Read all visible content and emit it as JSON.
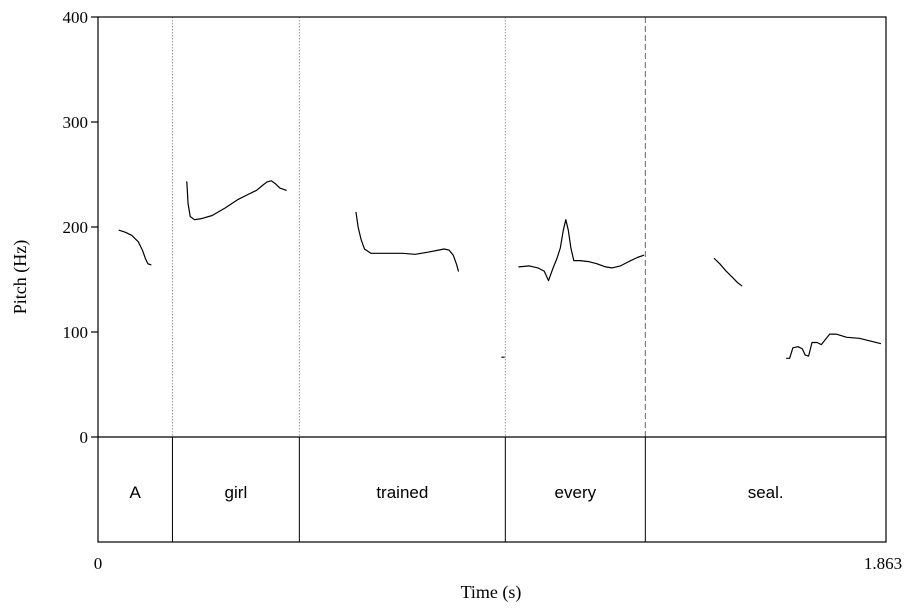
{
  "chart_data": {
    "type": "line",
    "xlabel": "Time (s)",
    "ylabel": "Pitch (Hz)",
    "xlim": [
      0,
      1.863
    ],
    "ylim": [
      0,
      400
    ],
    "x_tick_labels": [
      "0",
      "1.863"
    ],
    "y_ticks": [
      0,
      100,
      200,
      300,
      400
    ],
    "y_tick_labels": [
      "0",
      "100",
      "200",
      "300",
      "400"
    ],
    "grid": false,
    "boundaries": [
      {
        "time": 0.176,
        "style": "dotted"
      },
      {
        "time": 0.476,
        "style": "dotted"
      },
      {
        "time": 0.963,
        "style": "dotted"
      },
      {
        "time": 1.294,
        "style": "dashed"
      }
    ],
    "tier_boundaries": [
      0.176,
      0.476,
      0.963,
      1.294
    ],
    "words": [
      {
        "label": "A",
        "start": 0.0,
        "end": 0.176
      },
      {
        "label": "girl",
        "start": 0.176,
        "end": 0.476
      },
      {
        "label": "trained",
        "start": 0.476,
        "end": 0.963
      },
      {
        "label": "every",
        "start": 0.963,
        "end": 1.294
      },
      {
        "label": "seal.",
        "start": 1.294,
        "end": 1.863
      }
    ],
    "series": [
      {
        "segments": [
          [
            [
              0.05,
              197
            ],
            [
              0.065,
              195
            ],
            [
              0.08,
              192
            ],
            [
              0.095,
              186
            ],
            [
              0.105,
              178
            ],
            [
              0.112,
              170
            ],
            [
              0.118,
              165
            ],
            [
              0.125,
              164
            ]
          ],
          [
            [
              0.21,
              243
            ],
            [
              0.213,
              222
            ],
            [
              0.218,
              210
            ],
            [
              0.228,
              207
            ],
            [
              0.245,
              208
            ],
            [
              0.27,
              211
            ],
            [
              0.3,
              218
            ],
            [
              0.33,
              226
            ],
            [
              0.355,
              231
            ],
            [
              0.375,
              235
            ],
            [
              0.39,
              240
            ],
            [
              0.4,
              243
            ],
            [
              0.41,
              244
            ],
            [
              0.42,
              241
            ],
            [
              0.43,
              237
            ],
            [
              0.445,
              235
            ]
          ],
          [
            [
              0.61,
              214
            ],
            [
              0.615,
              200
            ],
            [
              0.622,
              188
            ],
            [
              0.63,
              179
            ],
            [
              0.645,
              175
            ],
            [
              0.68,
              175
            ],
            [
              0.72,
              175
            ],
            [
              0.75,
              174
            ],
            [
              0.78,
              176
            ],
            [
              0.805,
              178
            ],
            [
              0.818,
              179
            ],
            [
              0.83,
              178
            ],
            [
              0.84,
              173
            ],
            [
              0.848,
              164
            ],
            [
              0.852,
              158
            ]
          ],
          [
            [
              0.955,
              76
            ],
            [
              0.96,
              76
            ]
          ],
          [
            [
              0.995,
              162
            ],
            [
              1.02,
              163
            ],
            [
              1.04,
              161
            ],
            [
              1.055,
              158
            ],
            [
              1.065,
              149
            ],
            [
              1.075,
              160
            ],
            [
              1.085,
              170
            ],
            [
              1.093,
              180
            ],
            [
              1.1,
              197
            ],
            [
              1.106,
              207
            ],
            [
              1.112,
              197
            ],
            [
              1.118,
              180
            ],
            [
              1.125,
              168
            ],
            [
              1.14,
              168
            ],
            [
              1.16,
              167
            ],
            [
              1.18,
              165
            ],
            [
              1.2,
              162
            ],
            [
              1.215,
              161
            ],
            [
              1.235,
              163
            ],
            [
              1.255,
              167
            ],
            [
              1.275,
              171
            ],
            [
              1.29,
              173
            ]
          ],
          [
            [
              1.457,
              170
            ],
            [
              1.47,
              165
            ],
            [
              1.485,
              158
            ],
            [
              1.5,
              152
            ],
            [
              1.512,
              147
            ],
            [
              1.522,
              144
            ]
          ],
          [
            [
              1.628,
              75
            ],
            [
              1.635,
              75
            ],
            [
              1.643,
              85
            ],
            [
              1.655,
              86
            ],
            [
              1.665,
              84
            ],
            [
              1.672,
              78
            ],
            [
              1.68,
              77
            ],
            [
              1.688,
              90
            ],
            [
              1.7,
              90
            ],
            [
              1.71,
              88
            ],
            [
              1.72,
              93
            ],
            [
              1.73,
              98
            ],
            [
              1.745,
              98
            ],
            [
              1.77,
              95
            ],
            [
              1.8,
              94
            ],
            [
              1.83,
              91
            ],
            [
              1.85,
              89
            ]
          ]
        ]
      }
    ]
  }
}
